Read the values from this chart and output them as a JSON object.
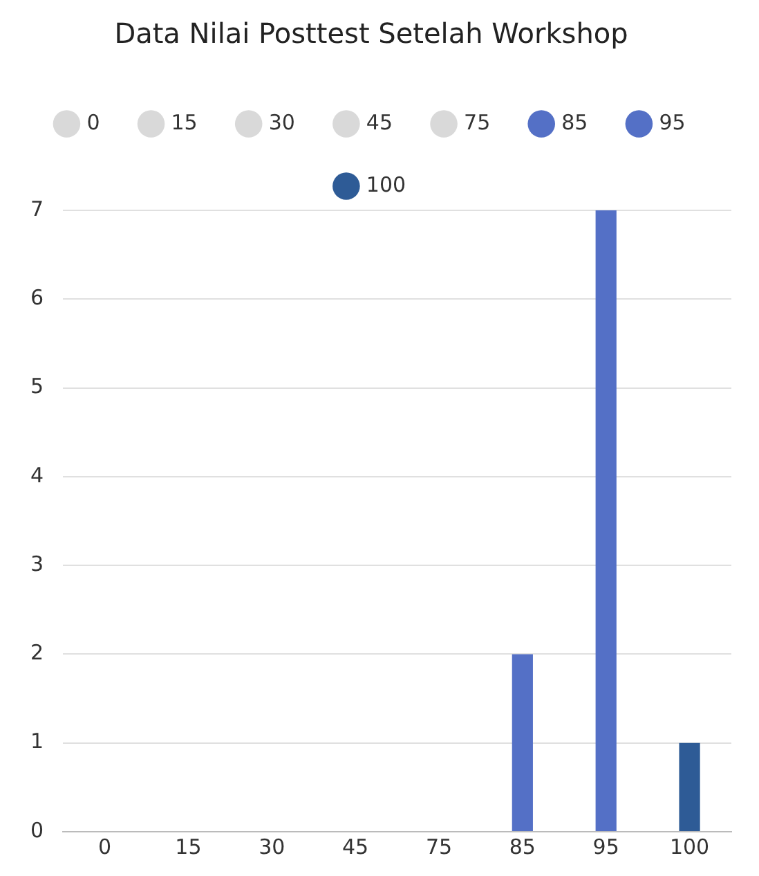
{
  "chart_data": {
    "type": "bar",
    "title": "Data Nilai Posttest Setelah Workshop",
    "categories": [
      "0",
      "15",
      "30",
      "45",
      "75",
      "85",
      "95",
      "100"
    ],
    "series": [
      {
        "name": "0",
        "color": "#d9d9d9",
        "values": [
          0,
          null,
          null,
          null,
          null,
          null,
          null,
          null
        ]
      },
      {
        "name": "15",
        "color": "#d9d9d9",
        "values": [
          null,
          0,
          null,
          null,
          null,
          null,
          null,
          null
        ]
      },
      {
        "name": "30",
        "color": "#d9d9d9",
        "values": [
          null,
          null,
          0,
          null,
          null,
          null,
          null,
          null
        ]
      },
      {
        "name": "45",
        "color": "#d9d9d9",
        "values": [
          null,
          null,
          null,
          0,
          null,
          null,
          null,
          null
        ]
      },
      {
        "name": "75",
        "color": "#d9d9d9",
        "values": [
          null,
          null,
          null,
          null,
          0,
          null,
          null,
          null
        ]
      },
      {
        "name": "85",
        "color": "#5470c6",
        "values": [
          null,
          null,
          null,
          null,
          null,
          2,
          null,
          null
        ]
      },
      {
        "name": "95",
        "color": "#5470c6",
        "values": [
          null,
          null,
          null,
          null,
          null,
          null,
          7,
          null
        ]
      },
      {
        "name": "100",
        "color": "#2e5b96",
        "values": [
          null,
          null,
          null,
          null,
          null,
          null,
          null,
          1
        ]
      }
    ],
    "ylim": [
      0,
      7
    ],
    "yticks": [
      0,
      1,
      2,
      3,
      4,
      5,
      6,
      7
    ],
    "grid": "y",
    "legend": "top"
  }
}
